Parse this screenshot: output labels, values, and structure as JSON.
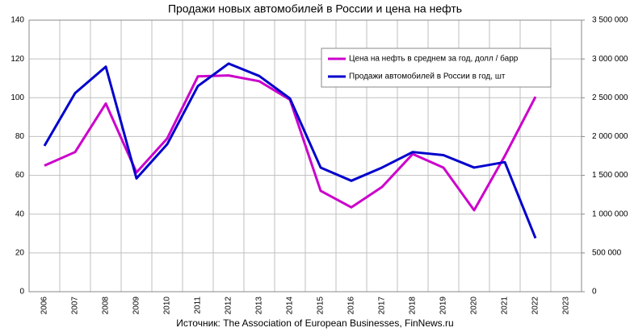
{
  "chart_data": {
    "type": "line",
    "title": "Продажи новых автомобилей в России и цена на нефть",
    "source": "Источник: The Association of European Businesses, FinNews.ru",
    "categories": [
      "2006",
      "2007",
      "2008",
      "2009",
      "2010",
      "2011",
      "2012",
      "2013",
      "2014",
      "2015",
      "2016",
      "2017",
      "2018",
      "2019",
      "2020",
      "2021",
      "2022",
      "2023"
    ],
    "series": [
      {
        "name": "Цена на нефть в среднем за год, долл / барр",
        "color": "#cc00cc",
        "axis": "y",
        "values": [
          65,
          72,
          97,
          61.5,
          79,
          111,
          111.5,
          108.5,
          99,
          52,
          43.5,
          54,
          71,
          64,
          42,
          70,
          100.5,
          null
        ]
      },
      {
        "name": "Продажи автомобилей в России в год, шт",
        "color": "#0000cc",
        "axis": "y2",
        "values": [
          1880000,
          2560000,
          2900000,
          1460000,
          1900000,
          2650000,
          2940000,
          2780000,
          2490000,
          1600000,
          1430000,
          1600000,
          1800000,
          1760000,
          1600000,
          1670000,
          690000,
          null
        ]
      }
    ],
    "ylim": [
      0,
      140
    ],
    "yticks": [
      0,
      20,
      40,
      60,
      80,
      100,
      120,
      140
    ],
    "y2lim": [
      0,
      3500000
    ],
    "y2ticks": [
      0,
      {
        "value": 500000,
        "label": "500 000"
      },
      {
        "value": 1000000,
        "label": "1 000 000"
      },
      {
        "value": 1500000,
        "label": "1 500 000"
      },
      {
        "value": 2000000,
        "label": "2 000 000"
      },
      {
        "value": 2500000,
        "label": "2 500 000"
      },
      {
        "value": 3000000,
        "label": "3 000 000"
      },
      {
        "value": 3500000,
        "label": "3 500 000"
      }
    ],
    "grid": true,
    "legend": "top-right"
  }
}
